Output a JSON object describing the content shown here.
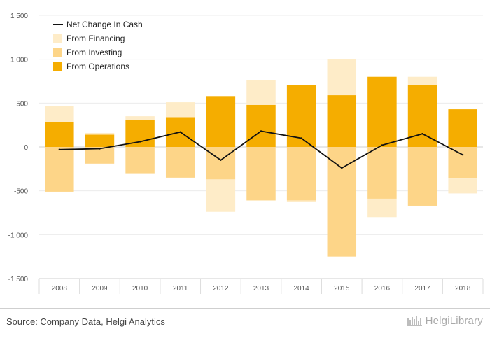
{
  "chart_data": {
    "type": "bar",
    "stacked": true,
    "categories": [
      "2008",
      "2009",
      "2010",
      "2011",
      "2012",
      "2013",
      "2014",
      "2015",
      "2016",
      "2017",
      "2018"
    ],
    "series": [
      {
        "name": "From Operations",
        "kind": "bar",
        "color": "#f5ad00",
        "values": [
          280,
          140,
          310,
          340,
          580,
          480,
          710,
          590,
          800,
          710,
          430
        ]
      },
      {
        "name": "From Investing",
        "kind": "bar",
        "color": "#fdd588",
        "values": [
          -510,
          -190,
          -300,
          -350,
          -370,
          -610,
          -610,
          -1250,
          -590,
          -670,
          -360
        ]
      },
      {
        "name": "From Financing",
        "kind": "bar",
        "color": "#feecc8",
        "values": [
          190,
          20,
          40,
          170,
          -370,
          280,
          -20,
          410,
          -210,
          90,
          -170
        ]
      },
      {
        "name": "Net Change In Cash",
        "kind": "line",
        "color": "#111111",
        "values": [
          -30,
          -20,
          60,
          170,
          -150,
          180,
          100,
          -240,
          20,
          150,
          -90
        ]
      }
    ],
    "yticks": [
      "1 500",
      "1 000",
      "500",
      "0",
      "-500",
      "-1 000",
      "-1 500"
    ],
    "ylim": [
      -1500,
      1500
    ],
    "yaxis_step": 500,
    "legend_position": "top-left",
    "grid": true
  },
  "footer": {
    "source": "Source: Company Data, Helgi Analytics",
    "brand": "HelgiLibrary"
  }
}
